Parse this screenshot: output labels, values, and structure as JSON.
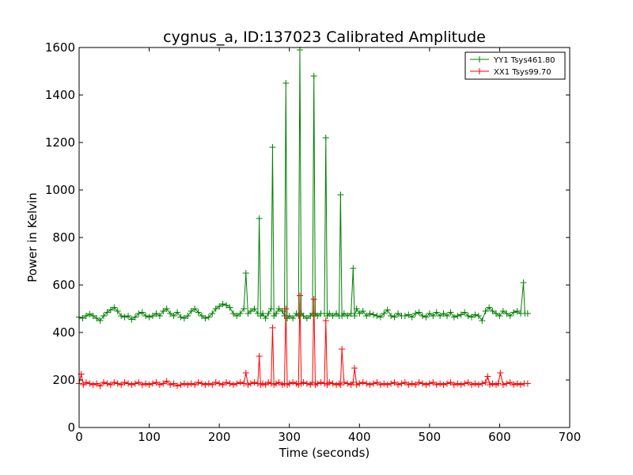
{
  "chart_data": {
    "type": "line",
    "title": "cygnus_a, ID:137023 Calibrated Amplitude",
    "xlabel": "Time (seconds)",
    "ylabel": "Power in Kelvin",
    "xlim": [
      0,
      700
    ],
    "ylim": [
      0,
      1600
    ],
    "xticks": [
      0,
      100,
      200,
      300,
      400,
      500,
      600,
      700
    ],
    "yticks": [
      0,
      200,
      400,
      600,
      800,
      1000,
      1200,
      1400,
      1600
    ],
    "grid": false,
    "legend_position": "top-right",
    "marker": "+",
    "series": [
      {
        "name": "YY1 Tsys461.80",
        "color": "#008000",
        "x": [
          0,
          5,
          10,
          15,
          20,
          25,
          30,
          35,
          40,
          45,
          50,
          55,
          60,
          65,
          70,
          75,
          80,
          85,
          90,
          95,
          100,
          105,
          110,
          115,
          120,
          125,
          130,
          135,
          140,
          145,
          150,
          155,
          160,
          165,
          170,
          175,
          180,
          185,
          190,
          195,
          200,
          205,
          210,
          215,
          220,
          225,
          230,
          235,
          238,
          241,
          245,
          250,
          255,
          257,
          259,
          262,
          266,
          270,
          274,
          276,
          278,
          281,
          285,
          290,
          293,
          295,
          297,
          300,
          305,
          310,
          313,
          315,
          317,
          320,
          325,
          330,
          333,
          335,
          337,
          340,
          345,
          350,
          352,
          354,
          357,
          362,
          367,
          371,
          373,
          375,
          378,
          383,
          388,
          391,
          393,
          396,
          400,
          405,
          410,
          415,
          420,
          425,
          430,
          435,
          440,
          445,
          450,
          455,
          460,
          465,
          470,
          475,
          480,
          485,
          490,
          495,
          500,
          505,
          510,
          515,
          520,
          525,
          530,
          535,
          540,
          545,
          550,
          555,
          560,
          565,
          570,
          575,
          580,
          585,
          590,
          595,
          600,
          605,
          610,
          615,
          620,
          625,
          630,
          634,
          636,
          640
        ],
        "y": [
          465,
          460,
          470,
          478,
          470,
          460,
          450,
          470,
          485,
          495,
          505,
          490,
          470,
          465,
          470,
          455,
          465,
          480,
          485,
          470,
          465,
          470,
          480,
          470,
          490,
          500,
          480,
          470,
          485,
          465,
          460,
          470,
          490,
          500,
          485,
          470,
          460,
          465,
          480,
          500,
          510,
          520,
          515,
          505,
          480,
          470,
          480,
          500,
          650,
          480,
          490,
          500,
          480,
          880,
          470,
          480,
          460,
          480,
          500,
          1180,
          470,
          480,
          500,
          490,
          470,
          1450,
          460,
          470,
          460,
          480,
          470,
          1590,
          480,
          470,
          460,
          470,
          480,
          1480,
          480,
          470,
          480,
          480,
          1220,
          470,
          480,
          470,
          480,
          470,
          980,
          470,
          480,
          470,
          480,
          670,
          470,
          500,
          480,
          490,
          470,
          480,
          475,
          470,
          465,
          480,
          495,
          470,
          465,
          480,
          470,
          470,
          475,
          465,
          480,
          485,
          470,
          465,
          480,
          470,
          485,
          470,
          480,
          470,
          485,
          465,
          470,
          475,
          485,
          470,
          465,
          475,
          470,
          450,
          490,
          505,
          490,
          480,
          470,
          490,
          480,
          470,
          485,
          490,
          480,
          610,
          480,
          480
        ]
      },
      {
        "name": "XX1 Tsys99.70",
        "color": "#ff0000",
        "x": [
          0,
          3,
          6,
          10,
          15,
          20,
          25,
          30,
          35,
          40,
          45,
          50,
          55,
          60,
          65,
          70,
          75,
          80,
          85,
          90,
          95,
          100,
          105,
          110,
          115,
          120,
          125,
          130,
          135,
          140,
          145,
          150,
          155,
          160,
          165,
          170,
          175,
          180,
          185,
          190,
          195,
          200,
          205,
          210,
          215,
          220,
          225,
          230,
          235,
          238,
          241,
          245,
          250,
          255,
          257,
          259,
          262,
          266,
          270,
          274,
          276,
          278,
          281,
          285,
          290,
          293,
          295,
          297,
          300,
          305,
          310,
          313,
          315,
          317,
          320,
          325,
          330,
          333,
          335,
          337,
          340,
          345,
          350,
          352,
          354,
          357,
          362,
          367,
          371,
          373,
          375,
          378,
          383,
          388,
          391,
          393,
          396,
          400,
          405,
          410,
          415,
          420,
          425,
          430,
          435,
          440,
          445,
          450,
          455,
          460,
          465,
          470,
          475,
          480,
          485,
          490,
          495,
          500,
          505,
          510,
          515,
          520,
          525,
          530,
          535,
          540,
          545,
          550,
          555,
          560,
          565,
          570,
          575,
          580,
          583,
          586,
          590,
          595,
          598,
          601,
          605,
          610,
          615,
          620,
          625,
          630,
          635,
          640
        ],
        "y": [
          185,
          225,
          180,
          190,
          185,
          180,
          185,
          175,
          190,
          185,
          180,
          190,
          185,
          180,
          190,
          185,
          180,
          185,
          190,
          180,
          185,
          180,
          185,
          190,
          180,
          185,
          195,
          180,
          185,
          175,
          180,
          185,
          180,
          185,
          180,
          190,
          185,
          180,
          185,
          180,
          190,
          185,
          180,
          190,
          185,
          180,
          185,
          190,
          185,
          230,
          180,
          185,
          190,
          185,
          300,
          180,
          185,
          180,
          190,
          185,
          420,
          180,
          185,
          190,
          180,
          185,
          500,
          180,
          185,
          190,
          185,
          180,
          555,
          185,
          190,
          185,
          180,
          190,
          540,
          180,
          185,
          190,
          185,
          450,
          180,
          190,
          185,
          180,
          185,
          180,
          330,
          190,
          185,
          180,
          190,
          250,
          180,
          185,
          190,
          185,
          180,
          185,
          190,
          180,
          185,
          180,
          185,
          190,
          180,
          185,
          190,
          180,
          185,
          180,
          190,
          185,
          180,
          185,
          190,
          180,
          185,
          180,
          185,
          190,
          180,
          185,
          180,
          185,
          190,
          180,
          185,
          180,
          185,
          190,
          215,
          180,
          185,
          180,
          185,
          230,
          180,
          185,
          190,
          180,
          185,
          180,
          185,
          185
        ]
      }
    ]
  }
}
